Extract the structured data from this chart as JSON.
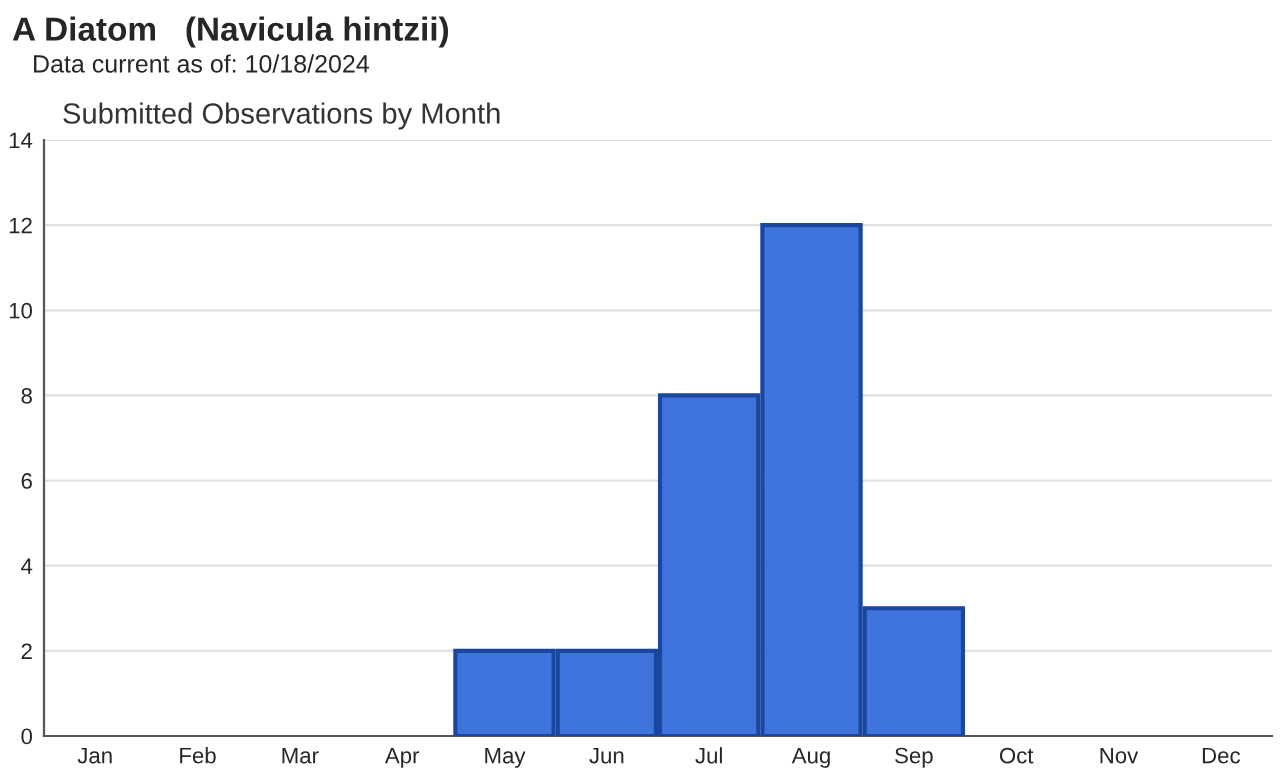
{
  "chart_data": {
    "type": "bar",
    "title": "A Diatom   (Navicula hintzii)",
    "subtitle": "Data current as of: 10/18/2024",
    "annotations": [
      "Submitted Observations by Month"
    ],
    "categories": [
      "Jan",
      "Feb",
      "Mar",
      "Apr",
      "May",
      "Jun",
      "Jul",
      "Aug",
      "Sep",
      "Oct",
      "Nov",
      "Dec"
    ],
    "values": [
      0,
      0,
      0,
      0,
      2,
      2,
      8,
      12,
      3,
      0,
      0,
      0
    ],
    "color": "#3f74dc",
    "ylim": [
      0,
      14
    ],
    "yticks": [
      0,
      2,
      4,
      6,
      8,
      10,
      12,
      14
    ],
    "grid": "y",
    "legend": false
  }
}
